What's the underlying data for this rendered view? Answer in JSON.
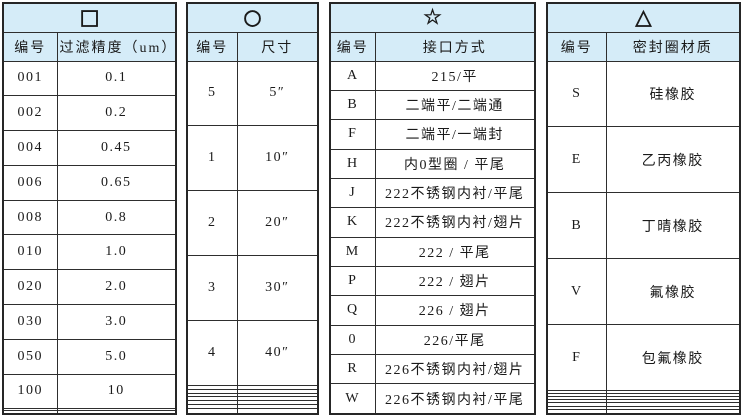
{
  "page": {
    "background": "#ffffff",
    "header_bg": "#d5ecf8",
    "border_color": "#2e2e2e",
    "text_color": "#1a1a1a"
  },
  "tables": [
    {
      "symbol": "□",
      "symbol_name": "square-outline-icon",
      "columns": [
        "编号",
        "过滤精度（um）"
      ],
      "rows": [
        [
          "001",
          "0.1"
        ],
        [
          "002",
          "0.2"
        ],
        [
          "004",
          "0.45"
        ],
        [
          "006",
          "0.65"
        ],
        [
          "008",
          "0.8"
        ],
        [
          "010",
          "1.0"
        ],
        [
          "020",
          "2.0"
        ],
        [
          "030",
          "3.0"
        ],
        [
          "050",
          "5.0"
        ],
        [
          "100",
          "10"
        ],
        [
          "",
          ""
        ],
        [
          "",
          ""
        ]
      ]
    },
    {
      "symbol": "○",
      "symbol_name": "circle-outline-icon",
      "columns": [
        "编号",
        "尺寸"
      ],
      "rows": [
        [
          "5",
          "5″"
        ],
        [
          "1",
          "10″"
        ],
        [
          "2",
          "20″"
        ],
        [
          "3",
          "30″"
        ],
        [
          "4",
          "40″"
        ],
        [
          "",
          ""
        ],
        [
          "",
          ""
        ],
        [
          "",
          ""
        ],
        [
          "",
          ""
        ],
        [
          "",
          ""
        ],
        [
          "",
          ""
        ],
        [
          "",
          ""
        ]
      ]
    },
    {
      "symbol": "☆",
      "symbol_name": "star-outline-icon",
      "columns": [
        "编号",
        "接口方式"
      ],
      "rows": [
        [
          "A",
          "215/平"
        ],
        [
          "B",
          "二端平/二端通"
        ],
        [
          "F",
          "二端平/一端封"
        ],
        [
          "H",
          "内0型圈 / 平尾"
        ],
        [
          "J",
          "222不锈钢内衬/平尾"
        ],
        [
          "K",
          "222不锈钢内衬/翅片"
        ],
        [
          "M",
          "222 / 平尾"
        ],
        [
          "P",
          "222 / 翅片"
        ],
        [
          "Q",
          "226 / 翅片"
        ],
        [
          "0",
          "226/平尾"
        ],
        [
          "R",
          "226不锈钢内衬/翅片"
        ],
        [
          "W",
          "226不锈钢内衬/平尾"
        ]
      ]
    },
    {
      "symbol": "△",
      "symbol_name": "triangle-outline-icon",
      "columns": [
        "编号",
        "密封圈材质"
      ],
      "rows": [
        [
          "S",
          "硅橡胶"
        ],
        [
          "E",
          "乙丙橡胶"
        ],
        [
          "B",
          "丁晴橡胶"
        ],
        [
          "V",
          "氟橡胶"
        ],
        [
          "F",
          "包氟橡胶"
        ],
        [
          "",
          ""
        ],
        [
          "",
          ""
        ],
        [
          "",
          ""
        ],
        [
          "",
          ""
        ],
        [
          "",
          ""
        ],
        [
          "",
          ""
        ],
        [
          "",
          ""
        ]
      ]
    }
  ]
}
